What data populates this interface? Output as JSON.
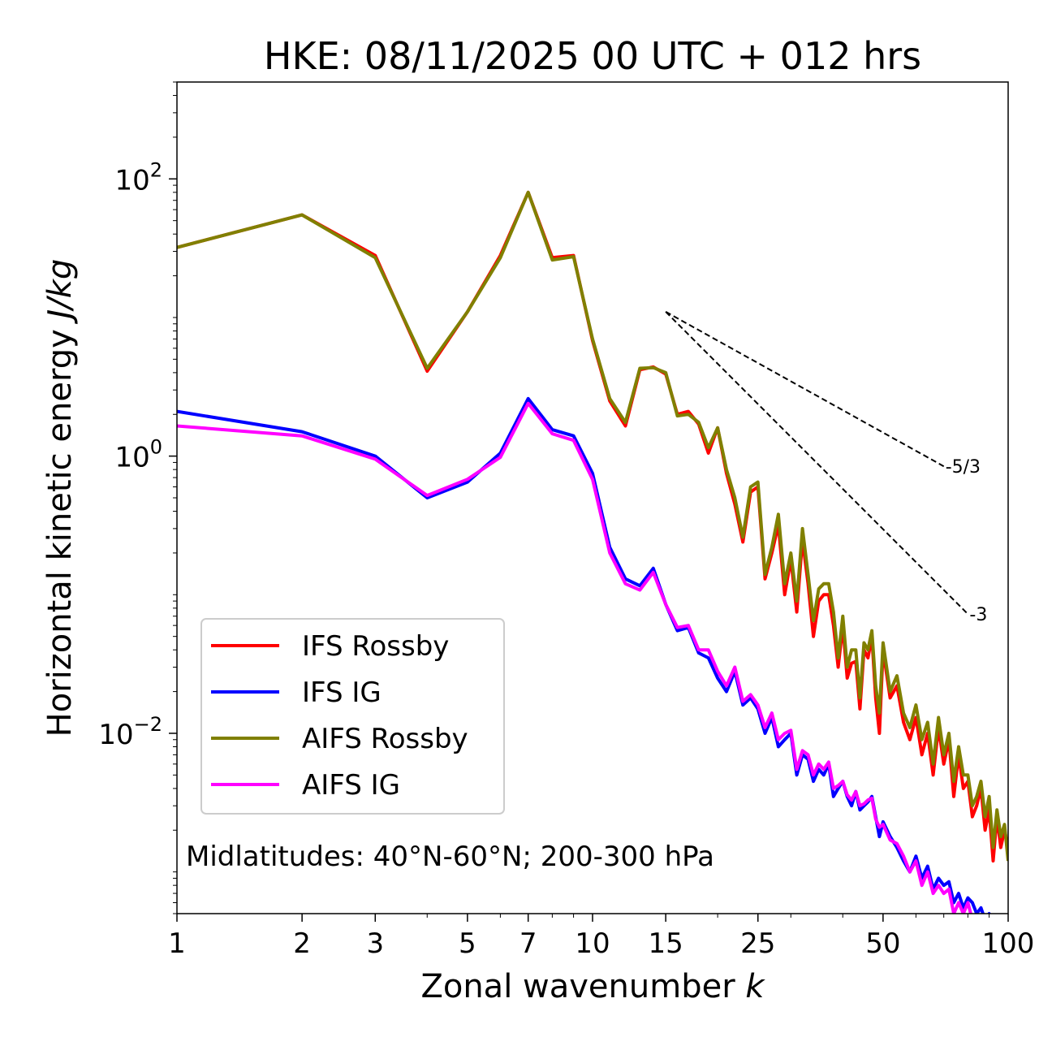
{
  "chart_data": {
    "type": "line",
    "title": "HKE: 08/11/2025 00 UTC + 012 hrs",
    "xlabel": "Zonal wavenumber k",
    "xlabel_main": "Zonal wavenumber ",
    "xlabel_var": "k",
    "ylabel_main": "Horizontal kinetic energy ",
    "ylabel_unit": "J/kg",
    "xscale": "log",
    "yscale": "log",
    "xlim": [
      1,
      100
    ],
    "ylim": [
      0.0005,
      500
    ],
    "x_ticks": [
      1,
      2,
      3,
      5,
      7,
      10,
      15,
      25,
      50,
      100
    ],
    "x_tick_labels": [
      "1",
      "2",
      "3",
      "5",
      "7",
      "10",
      "15",
      "25",
      "50",
      "100"
    ],
    "y_ticks": [
      {
        "value": 100,
        "base": "10",
        "exp": "2"
      },
      {
        "value": 1,
        "base": "10",
        "exp": "0"
      },
      {
        "value": 0.01,
        "base": "10",
        "exp": "−2"
      }
    ],
    "legend_position": "lower-left",
    "annotation": "Midlatitudes: 40°N-60°N; 200-300 hPa",
    "reference_lines": [
      {
        "label": "-5/3",
        "slope": -1.6667,
        "x0": 15,
        "y0": 11.0,
        "x1": 70
      },
      {
        "label": "-3",
        "slope": -3,
        "x0": 15,
        "y0": 11.0,
        "x1": 80
      }
    ],
    "series": [
      {
        "name": "IFS Rossby",
        "color": "#ff0000",
        "x": [
          1,
          2,
          3,
          4,
          5,
          6,
          7,
          8,
          9,
          10,
          11,
          12,
          13,
          14,
          15,
          16,
          17,
          18,
          19,
          20,
          21,
          22,
          23,
          24,
          25,
          26,
          27,
          28,
          29,
          30,
          31,
          32,
          33,
          34,
          35,
          36,
          37,
          38,
          39,
          40,
          41,
          42,
          43,
          44,
          45,
          46,
          47,
          48,
          49,
          50,
          52,
          54,
          56,
          58,
          60,
          62,
          64,
          66,
          68,
          70,
          72,
          74,
          76,
          78,
          80,
          82,
          84,
          86,
          88,
          90,
          92,
          94,
          96,
          98,
          100
        ],
        "values": [
          32,
          55,
          28,
          4.1,
          11,
          28,
          80,
          27,
          28,
          6.8,
          2.5,
          1.65,
          4.2,
          4.4,
          3.9,
          2.0,
          2.1,
          1.7,
          1.05,
          1.6,
          0.75,
          0.45,
          0.24,
          0.55,
          0.6,
          0.13,
          0.2,
          0.32,
          0.1,
          0.18,
          0.075,
          0.25,
          0.12,
          0.05,
          0.09,
          0.1,
          0.1,
          0.06,
          0.03,
          0.06,
          0.025,
          0.032,
          0.033,
          0.015,
          0.04,
          0.035,
          0.05,
          0.018,
          0.01,
          0.04,
          0.018,
          0.022,
          0.012,
          0.009,
          0.013,
          0.007,
          0.01,
          0.005,
          0.011,
          0.006,
          0.009,
          0.0035,
          0.007,
          0.004,
          0.0045,
          0.0025,
          0.003,
          0.004,
          0.002,
          0.0028,
          0.0012,
          0.0025,
          0.0015,
          0.002,
          0.0015
        ]
      },
      {
        "name": "IFS IG",
        "color": "#0000ff",
        "x": [
          1,
          2,
          3,
          4,
          5,
          6,
          7,
          8,
          9,
          10,
          11,
          12,
          13,
          14,
          15,
          16,
          17,
          18,
          19,
          20,
          21,
          22,
          23,
          24,
          25,
          26,
          27,
          28,
          29,
          30,
          31,
          32,
          33,
          34,
          35,
          36,
          37,
          38,
          39,
          40,
          41,
          42,
          43,
          44,
          45,
          46,
          47,
          48,
          49,
          50,
          52,
          54,
          56,
          58,
          60,
          62,
          64,
          66,
          68,
          70,
          72,
          74,
          76,
          78,
          80,
          82,
          84,
          86,
          88,
          90,
          92,
          94,
          96,
          98,
          100
        ],
        "values": [
          2.1,
          1.5,
          1.0,
          0.5,
          0.65,
          1.05,
          2.6,
          1.55,
          1.4,
          0.75,
          0.22,
          0.13,
          0.116,
          0.155,
          0.085,
          0.055,
          0.058,
          0.038,
          0.035,
          0.025,
          0.02,
          0.028,
          0.016,
          0.018,
          0.015,
          0.01,
          0.013,
          0.008,
          0.009,
          0.01,
          0.005,
          0.007,
          0.0065,
          0.0045,
          0.0055,
          0.005,
          0.006,
          0.0035,
          0.004,
          0.0045,
          0.0035,
          0.003,
          0.0038,
          0.0028,
          0.003,
          0.0032,
          0.0035,
          0.0025,
          0.0018,
          0.0023,
          0.0018,
          0.0015,
          0.0012,
          0.001,
          0.0013,
          0.0009,
          0.0011,
          0.00075,
          0.0009,
          0.0008,
          0.00085,
          0.0006,
          0.0007,
          0.00055,
          0.00065,
          0.0006,
          0.0005,
          0.00055,
          0.00045,
          0.0005,
          0.0004,
          0.00042,
          0.00035,
          0.00038,
          0.00032
        ]
      },
      {
        "name": "AIFS Rossby",
        "color": "#808000",
        "x": [
          1,
          2,
          3,
          4,
          5,
          6,
          7,
          8,
          9,
          10,
          11,
          12,
          13,
          14,
          15,
          16,
          17,
          18,
          19,
          20,
          21,
          22,
          23,
          24,
          25,
          26,
          27,
          28,
          29,
          30,
          31,
          32,
          33,
          34,
          35,
          36,
          37,
          38,
          39,
          40,
          41,
          42,
          43,
          44,
          45,
          46,
          47,
          48,
          49,
          50,
          52,
          54,
          56,
          58,
          60,
          62,
          64,
          66,
          68,
          70,
          72,
          74,
          76,
          78,
          80,
          82,
          84,
          86,
          88,
          90,
          92,
          94,
          96,
          98,
          100
        ],
        "values": [
          32,
          55,
          27,
          4.3,
          11,
          27,
          80,
          26,
          27.5,
          7.0,
          2.6,
          1.75,
          4.3,
          4.35,
          4.0,
          1.95,
          2.0,
          1.75,
          1.15,
          1.6,
          0.8,
          0.5,
          0.26,
          0.6,
          0.65,
          0.14,
          0.22,
          0.38,
          0.12,
          0.2,
          0.09,
          0.3,
          0.14,
          0.065,
          0.11,
          0.12,
          0.12,
          0.075,
          0.035,
          0.07,
          0.03,
          0.04,
          0.04,
          0.018,
          0.045,
          0.04,
          0.055,
          0.022,
          0.014,
          0.045,
          0.02,
          0.026,
          0.014,
          0.011,
          0.016,
          0.009,
          0.012,
          0.006,
          0.013,
          0.007,
          0.01,
          0.0045,
          0.008,
          0.005,
          0.005,
          0.003,
          0.0035,
          0.0045,
          0.0025,
          0.0035,
          0.0015,
          0.0028,
          0.0018,
          0.0022,
          0.0012
        ]
      },
      {
        "name": "AIFS IG",
        "color": "#ff00ff",
        "x": [
          1,
          2,
          3,
          4,
          5,
          6,
          7,
          8,
          9,
          10,
          11,
          12,
          13,
          14,
          15,
          16,
          17,
          18,
          19,
          20,
          21,
          22,
          23,
          24,
          25,
          26,
          27,
          28,
          29,
          30,
          31,
          32,
          33,
          34,
          35,
          36,
          37,
          38,
          39,
          40,
          41,
          42,
          43,
          44,
          45,
          46,
          47,
          48,
          49,
          50,
          52,
          54,
          56,
          58,
          60,
          62,
          64,
          66,
          68,
          70,
          72,
          74,
          76,
          78,
          80,
          82,
          84,
          86,
          88,
          90,
          92,
          94,
          96,
          98,
          100
        ],
        "values": [
          1.65,
          1.4,
          0.95,
          0.52,
          0.68,
          0.98,
          2.4,
          1.45,
          1.3,
          0.68,
          0.2,
          0.12,
          0.108,
          0.145,
          0.085,
          0.058,
          0.06,
          0.04,
          0.04,
          0.028,
          0.022,
          0.03,
          0.017,
          0.019,
          0.016,
          0.011,
          0.014,
          0.009,
          0.01,
          0.0105,
          0.0055,
          0.0075,
          0.007,
          0.005,
          0.006,
          0.0055,
          0.0062,
          0.004,
          0.0042,
          0.0045,
          0.0036,
          0.0033,
          0.0038,
          0.003,
          0.0031,
          0.0033,
          0.0034,
          0.0024,
          0.0021,
          0.0022,
          0.0017,
          0.0016,
          0.0013,
          0.001,
          0.0012,
          0.0008,
          0.001,
          0.0007,
          0.0008,
          0.0007,
          0.00075,
          0.0005,
          0.0006,
          0.0005,
          0.0006,
          0.00045,
          0.0004,
          0.00045,
          0.0004,
          0.0004,
          0.00032,
          0.00034,
          0.0003,
          0.00028,
          0.00026
        ]
      }
    ]
  }
}
